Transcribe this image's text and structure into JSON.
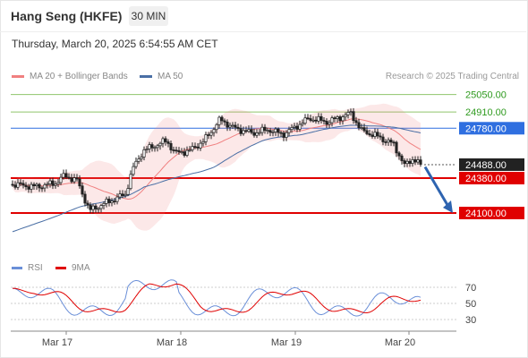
{
  "header": {
    "title": "Hang Seng (HKFE)",
    "timeframe": "30 MIN",
    "datetime": "Thursday, March 20, 2025 6:54:55 AM CET"
  },
  "legend": {
    "ma20_label": "MA 20 + Bollinger Bands",
    "ma50_label": "MA 50",
    "rsi_label": "RSI",
    "rsi_ma_label": "9MA",
    "credit": "Research © 2025 Trading Central"
  },
  "colors": {
    "ma20": "#f08080",
    "ma50": "#4a6fa5",
    "support": "#e00000",
    "resistance_line": "#8fc46b",
    "resistance_label": "#2e9a1e",
    "pivot": "#2f6fe0",
    "arrow": "#2e64b0",
    "rsi": "#6a8fd8",
    "rsi_ma": "#e00000"
  },
  "chart_data": [
    {
      "type": "candlestick",
      "timeframe": "30 MIN",
      "ylim": [
        23800,
        25150
      ],
      "x_ticks": [
        "Mar 17",
        "Mar 18",
        "Mar 19",
        "Mar 20"
      ],
      "current_price": 24488.0,
      "levels": [
        {
          "value": 25050.0,
          "label": "25050.00",
          "kind": "resistance"
        },
        {
          "value": 24910.0,
          "label": "24910.00",
          "kind": "resistance"
        },
        {
          "value": 24780.0,
          "label": "24780.00",
          "kind": "pivot"
        },
        {
          "value": 24488.0,
          "label": "24488.00",
          "kind": "last"
        },
        {
          "value": 24380.0,
          "label": "24380.00",
          "kind": "support"
        },
        {
          "value": 24100.0,
          "label": "24100.00",
          "kind": "support"
        }
      ],
      "forecast_arrow": {
        "from": 24470,
        "to": 24100
      },
      "series": [
        {
          "name": "MA 20 + Bollinger Bands",
          "kind": "ma20_bands"
        },
        {
          "name": "MA 50",
          "kind": "ma50"
        }
      ]
    },
    {
      "type": "line",
      "title": "RSI",
      "ylim": [
        20,
        80
      ],
      "y_ticks": [
        70,
        50,
        30
      ],
      "series": [
        {
          "name": "RSI"
        },
        {
          "name": "9MA"
        }
      ]
    }
  ]
}
